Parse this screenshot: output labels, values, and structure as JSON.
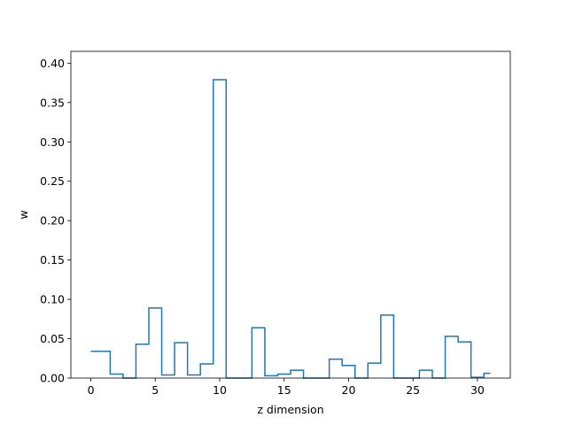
{
  "chart_data": {
    "type": "line",
    "style": "step-histogram",
    "title": "",
    "xlabel": "z dimension",
    "ylabel": "w",
    "xlim": [
      -1.55,
      32.55
    ],
    "ylim": [
      0,
      0.415
    ],
    "x_ticks": [
      0,
      5,
      10,
      15,
      20,
      25,
      30
    ],
    "x_tick_labels": [
      "0",
      "5",
      "10",
      "15",
      "20",
      "25",
      "30"
    ],
    "y_ticks": [
      0,
      0.05,
      0.1,
      0.15,
      0.2,
      0.25,
      0.3,
      0.35,
      0.4
    ],
    "y_tick_labels": [
      "0.00",
      "0.05",
      "0.10",
      "0.15",
      "0.20",
      "0.25",
      "0.30",
      "0.35",
      "0.40"
    ],
    "grid": false,
    "line_color": "#1f77b4",
    "x": [
      0,
      1,
      2,
      3,
      4,
      5,
      6,
      7,
      8,
      9,
      10,
      11,
      12,
      13,
      14,
      15,
      16,
      17,
      18,
      19,
      20,
      21,
      22,
      23,
      24,
      25,
      26,
      27,
      28,
      29,
      30,
      31
    ],
    "values": [
      0.034,
      0.034,
      0.005,
      0.0,
      0.043,
      0.089,
      0.004,
      0.045,
      0.004,
      0.018,
      0.379,
      0.0,
      0.0,
      0.064,
      0.003,
      0.005,
      0.01,
      0.0,
      0.0,
      0.024,
      0.016,
      0.0,
      0.019,
      0.08,
      0.0,
      0.0,
      0.01,
      0.0,
      0.053,
      0.046,
      0.001,
      0.006
    ]
  }
}
